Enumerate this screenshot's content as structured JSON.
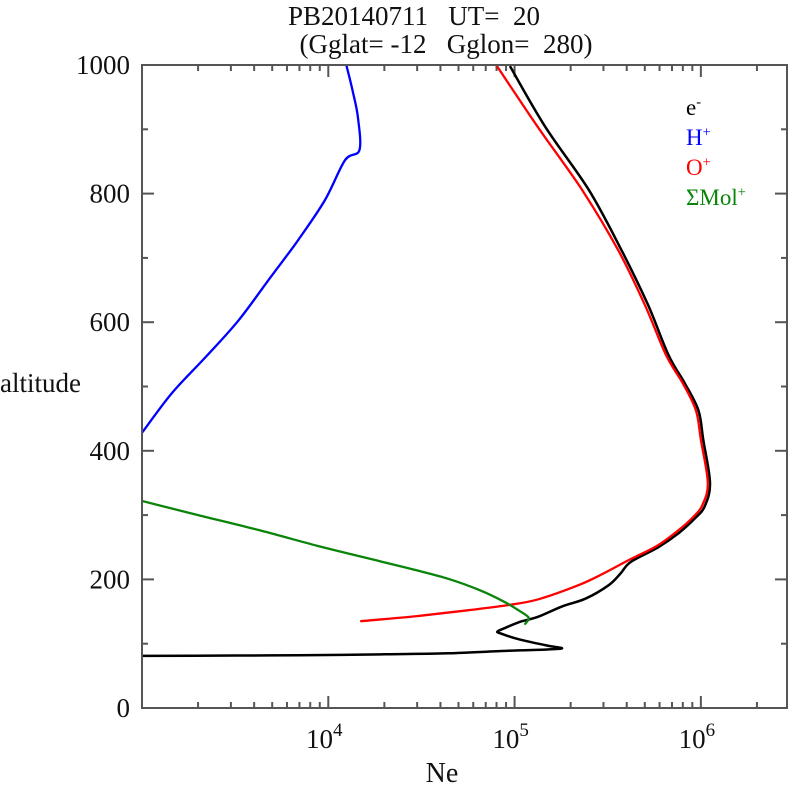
{
  "chart_data": {
    "type": "line",
    "title": "PB20140711   UT=  20",
    "subtitle": "(Gglat= -12   Gglon=  280)",
    "xlabel": "Ne",
    "ylabel": "altitude",
    "x_scale": "log",
    "y_scale": "linear",
    "xlim": [
      1000,
      2900000
    ],
    "ylim": [
      0,
      1000
    ],
    "x_major_ticks": [
      10000,
      100000,
      1000000
    ],
    "x_major_tick_exponents": [
      "4",
      "5",
      "6"
    ],
    "y_major_step": 200,
    "y_minor_step": 100,
    "y_major_tick_labels": [
      "0",
      "200",
      "400",
      "600",
      "800",
      "1000"
    ],
    "grid": false,
    "frame_color": "#555555",
    "legend_position": "inside-top-right",
    "legend": [
      {
        "id": "electron",
        "base": "e",
        "sup": "-",
        "color": "#000000"
      },
      {
        "id": "h-plus",
        "base": "H",
        "sup": "+",
        "color": "#0000ff"
      },
      {
        "id": "o-plus",
        "base": "O",
        "sup": "+",
        "color": "#ff0000"
      },
      {
        "id": "mol-plus",
        "base": "ΣMol",
        "sup": "+",
        "color": "#0a840a"
      }
    ],
    "series": [
      {
        "id": "electron",
        "name": "e-",
        "color": "#000000",
        "width": 2.5,
        "points_format": [
          "Ne_cm3",
          "altitude_km"
        ],
        "points": [
          [
            1000,
            81
          ],
          [
            3200,
            81.6
          ],
          [
            6900,
            82
          ],
          [
            20000,
            83.5
          ],
          [
            44000,
            85
          ],
          [
            92000,
            89
          ],
          [
            150000,
            91
          ],
          [
            180000,
            93
          ],
          [
            150000,
            97
          ],
          [
            105000,
            107
          ],
          [
            84000,
            116
          ],
          [
            81000,
            119
          ],
          [
            88000,
            124
          ],
          [
            107000,
            134
          ],
          [
            134000,
            142
          ],
          [
            180000,
            158
          ],
          [
            240000,
            170
          ],
          [
            320000,
            191
          ],
          [
            370000,
            209
          ],
          [
            420000,
            227
          ],
          [
            590000,
            250
          ],
          [
            760000,
            272
          ],
          [
            930000,
            295
          ],
          [
            1050000,
            314
          ],
          [
            1120000,
            350
          ],
          [
            1030000,
            417
          ],
          [
            970000,
            463
          ],
          [
            820000,
            505
          ],
          [
            670000,
            549
          ],
          [
            520000,
            627
          ],
          [
            375000,
            712
          ],
          [
            250000,
            806
          ],
          [
            146000,
            904
          ],
          [
            95000,
            997
          ]
        ]
      },
      {
        "id": "h-plus",
        "name": "H+",
        "color": "#0000ff",
        "width": 2.3,
        "points_format": [
          "Ne_cm3",
          "altitude_km"
        ],
        "points": [
          [
            1000,
            428
          ],
          [
            1450,
            490
          ],
          [
            2200,
            546
          ],
          [
            3300,
            603
          ],
          [
            4900,
            670
          ],
          [
            6900,
            728
          ],
          [
            9600,
            790
          ],
          [
            12300,
            852
          ],
          [
            14700,
            868
          ],
          [
            14400,
            920
          ],
          [
            13500,
            960
          ],
          [
            12500,
            1000
          ]
        ]
      },
      {
        "id": "o-plus",
        "name": "O+",
        "color": "#ff0000",
        "width": 2.3,
        "points_format": [
          "Ne_cm3",
          "altitude_km"
        ],
        "points": [
          [
            15000,
            135
          ],
          [
            30000,
            143
          ],
          [
            56000,
            152
          ],
          [
            92000,
            160
          ],
          [
            134000,
            169
          ],
          [
            220000,
            191
          ],
          [
            290000,
            207
          ],
          [
            410000,
            230
          ],
          [
            580000,
            252
          ],
          [
            740000,
            274
          ],
          [
            910000,
            297
          ],
          [
            1020000,
            316
          ],
          [
            1090000,
            350
          ],
          [
            1000000,
            417
          ],
          [
            940000,
            463
          ],
          [
            800000,
            505
          ],
          [
            650000,
            549
          ],
          [
            500000,
            627
          ],
          [
            360000,
            712
          ],
          [
            230000,
            806
          ],
          [
            133000,
            904
          ],
          [
            81000,
            997
          ]
        ]
      },
      {
        "id": "mol-plus",
        "name": "Mol+",
        "color": "#0a840a",
        "width": 2.3,
        "points_format": [
          "Ne_cm3",
          "altitude_km"
        ],
        "points": [
          [
            1000,
            322
          ],
          [
            2000,
            300
          ],
          [
            4200,
            277
          ],
          [
            8800,
            252
          ],
          [
            18500,
            229
          ],
          [
            29000,
            215
          ],
          [
            44000,
            201
          ],
          [
            64000,
            184
          ],
          [
            87000,
            166
          ],
          [
            105000,
            152
          ],
          [
            117000,
            143
          ],
          [
            119000,
            138
          ],
          [
            114000,
            131
          ]
        ]
      }
    ]
  }
}
